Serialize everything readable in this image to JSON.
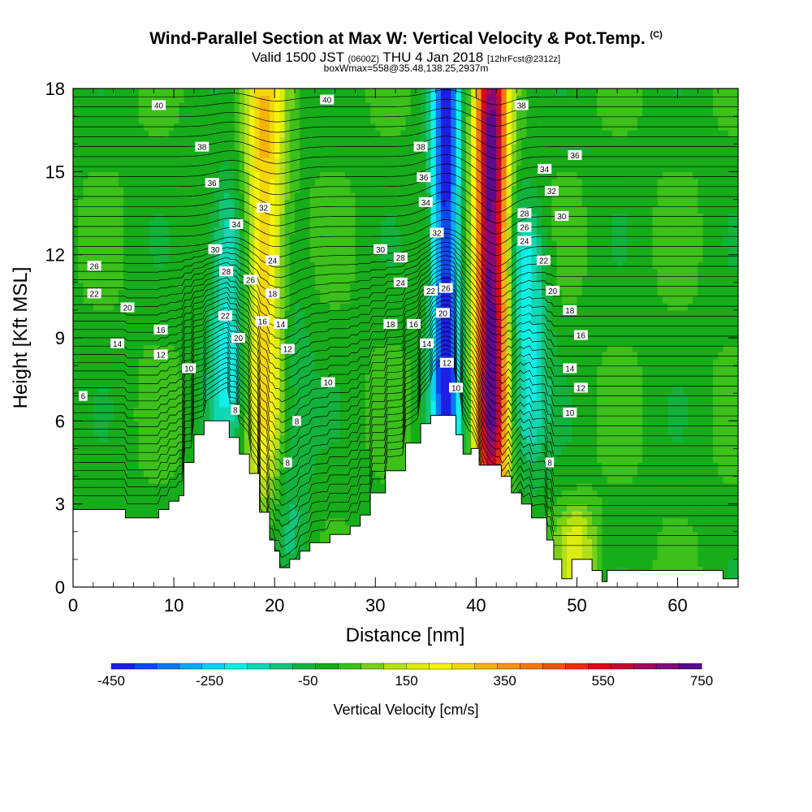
{
  "title": {
    "main": "Wind-Parallel Section at Max W: Vertical Velocity & Pot.Temp.",
    "copyright": "(C)",
    "valid_prefix": "Valid 1500 JST",
    "valid_utc": "(0600Z)",
    "valid_date": "THU 4 Jan 2018",
    "forecast": "[12hrFcst@2312z]",
    "box_info": "boxWmax=558@35.48,138.25,2937m"
  },
  "chart_data": {
    "type": "heatmap",
    "xlabel": "Distance [nm]",
    "ylabel": "Height [Kft MSL]",
    "xlim": [
      0,
      66
    ],
    "ylim": [
      0,
      18
    ],
    "x_ticks": [
      0,
      10,
      20,
      30,
      40,
      50,
      60
    ],
    "y_ticks": [
      0,
      3,
      6,
      9,
      12,
      15,
      18
    ],
    "grid": false,
    "colorbar": {
      "label": "Vertical Velocity [cm/s]",
      "tick_labels": [
        "-450",
        "-250",
        "-50",
        "150",
        "350",
        "550",
        "750"
      ],
      "colors": [
        "#1e1ee6",
        "#0a4af0",
        "#0a78f5",
        "#08aaf5",
        "#0ad2f0",
        "#0ef0e6",
        "#10d8b4",
        "#12c478",
        "#12b23c",
        "#16ac1a",
        "#3cc01a",
        "#78d01a",
        "#b4e018",
        "#dcec10",
        "#f5f50a",
        "#f5d60a",
        "#f5b40a",
        "#f5960a",
        "#f5780a",
        "#f5500a",
        "#ee2a0a",
        "#dc0a14",
        "#c00a32",
        "#a00a5a",
        "#820a78",
        "#5a0a8c"
      ]
    },
    "vertical_velocity_features": [
      {
        "x": 19,
        "z_range": [
          6,
          18
        ],
        "w": 300
      },
      {
        "x": 15.5,
        "z_range": [
          7,
          13
        ],
        "w": -200
      },
      {
        "x": 21.5,
        "z_range": [
          2,
          9
        ],
        "w": -100
      },
      {
        "x": 37,
        "z_range": [
          6,
          18
        ],
        "w": -450
      },
      {
        "x": 41.5,
        "z_range": [
          5,
          18
        ],
        "w": 750
      },
      {
        "x": 45,
        "z_range": [
          6,
          12
        ],
        "w": -200
      },
      {
        "x": 50,
        "z_range": [
          0,
          2
        ],
        "w": 150
      }
    ],
    "terrain": [
      {
        "x": 0,
        "h": 2.8
      },
      {
        "x": 5,
        "h": 2.8
      },
      {
        "x": 5.2,
        "h": 2.5
      },
      {
        "x": 8.3,
        "h": 2.5
      },
      {
        "x": 8.5,
        "h": 2.8
      },
      {
        "x": 9.5,
        "h": 3.1
      },
      {
        "x": 10.5,
        "h": 3.3
      },
      {
        "x": 11,
        "h": 4.5
      },
      {
        "x": 12,
        "h": 5.5
      },
      {
        "x": 13,
        "h": 6.0
      },
      {
        "x": 15,
        "h": 6.0
      },
      {
        "x": 15.5,
        "h": 5.4
      },
      {
        "x": 16.5,
        "h": 4.8
      },
      {
        "x": 17.5,
        "h": 4.1
      },
      {
        "x": 18.5,
        "h": 2.7
      },
      {
        "x": 19.5,
        "h": 1.7
      },
      {
        "x": 20,
        "h": 1.3
      },
      {
        "x": 20.5,
        "h": 0.7
      },
      {
        "x": 21.5,
        "h": 1.0
      },
      {
        "x": 22.5,
        "h": 1.3
      },
      {
        "x": 23.5,
        "h": 1.6
      },
      {
        "x": 25.5,
        "h": 1.9
      },
      {
        "x": 27.5,
        "h": 2.2
      },
      {
        "x": 28.5,
        "h": 2.6
      },
      {
        "x": 29.5,
        "h": 3.4
      },
      {
        "x": 31,
        "h": 4.2
      },
      {
        "x": 33,
        "h": 5.2
      },
      {
        "x": 34.5,
        "h": 5.9
      },
      {
        "x": 35.5,
        "h": 6.2
      },
      {
        "x": 37,
        "h": 6.2
      },
      {
        "x": 38,
        "h": 5.5
      },
      {
        "x": 38.7,
        "h": 4.8
      },
      {
        "x": 39.5,
        "h": 5.0
      },
      {
        "x": 40.3,
        "h": 4.4
      },
      {
        "x": 42,
        "h": 4.4
      },
      {
        "x": 42.5,
        "h": 4.0
      },
      {
        "x": 43.5,
        "h": 3.4
      },
      {
        "x": 44.5,
        "h": 3.0
      },
      {
        "x": 45.5,
        "h": 2.5
      },
      {
        "x": 47,
        "h": 1.7
      },
      {
        "x": 47.7,
        "h": 1.0
      },
      {
        "x": 48.5,
        "h": 0.3
      },
      {
        "x": 49.5,
        "h": 1.0
      },
      {
        "x": 51,
        "h": 1.0
      },
      {
        "x": 51.5,
        "h": 0.6
      },
      {
        "x": 52.5,
        "h": 0.2
      },
      {
        "x": 53,
        "h": 0.6
      },
      {
        "x": 60,
        "h": 0.6
      },
      {
        "x": 64,
        "h": 0.6
      },
      {
        "x": 64.5,
        "h": 0.3
      },
      {
        "x": 66,
        "h": 0.3
      }
    ],
    "potential_temperature_labels": [
      {
        "text": "40",
        "x": 8.5,
        "y": 17.4
      },
      {
        "text": "40",
        "x": 25.2,
        "y": 17.6
      },
      {
        "text": "38",
        "x": 44.5,
        "y": 17.4
      },
      {
        "text": "38",
        "x": 12.8,
        "y": 15.9
      },
      {
        "text": "38",
        "x": 34.5,
        "y": 15.9
      },
      {
        "text": "36",
        "x": 49.8,
        "y": 15.6
      },
      {
        "text": "36",
        "x": 13.8,
        "y": 14.6
      },
      {
        "text": "36",
        "x": 34.8,
        "y": 14.8
      },
      {
        "text": "34",
        "x": 46.8,
        "y": 15.1
      },
      {
        "text": "34",
        "x": 16.2,
        "y": 13.1
      },
      {
        "text": "32",
        "x": 18.9,
        "y": 13.7
      },
      {
        "text": "34",
        "x": 35,
        "y": 13.9
      },
      {
        "text": "32",
        "x": 47.5,
        "y": 14.3
      },
      {
        "text": "28",
        "x": 44.8,
        "y": 13.5
      },
      {
        "text": "30",
        "x": 48.5,
        "y": 13.4
      },
      {
        "text": "32",
        "x": 36.1,
        "y": 12.8
      },
      {
        "text": "26",
        "x": 44.8,
        "y": 13.0
      },
      {
        "text": "24",
        "x": 44.8,
        "y": 12.5
      },
      {
        "text": "30",
        "x": 14.1,
        "y": 12.2
      },
      {
        "text": "30",
        "x": 30.5,
        "y": 12.2
      },
      {
        "text": "28",
        "x": 32.5,
        "y": 11.9
      },
      {
        "text": "24",
        "x": 19.8,
        "y": 11.8
      },
      {
        "text": "22",
        "x": 46.7,
        "y": 11.8
      },
      {
        "text": "26",
        "x": 2.1,
        "y": 11.6
      },
      {
        "text": "28",
        "x": 15.2,
        "y": 11.4
      },
      {
        "text": "26",
        "x": 17.6,
        "y": 11.1
      },
      {
        "text": "24",
        "x": 32.5,
        "y": 11.0
      },
      {
        "text": "26",
        "x": 37,
        "y": 10.8
      },
      {
        "text": "20",
        "x": 47.6,
        "y": 10.7
      },
      {
        "text": "22",
        "x": 35.5,
        "y": 10.7
      },
      {
        "text": "22",
        "x": 2.1,
        "y": 10.6
      },
      {
        "text": "18",
        "x": 19.8,
        "y": 10.6
      },
      {
        "text": "20",
        "x": 5.4,
        "y": 10.1
      },
      {
        "text": "18",
        "x": 49.3,
        "y": 10.0
      },
      {
        "text": "22",
        "x": 15.1,
        "y": 9.8
      },
      {
        "text": "20",
        "x": 36.7,
        "y": 9.9
      },
      {
        "text": "16",
        "x": 18.8,
        "y": 9.6
      },
      {
        "text": "14",
        "x": 20.6,
        "y": 9.5
      },
      {
        "text": "18",
        "x": 31.5,
        "y": 9.5
      },
      {
        "text": "16",
        "x": 33.8,
        "y": 9.5
      },
      {
        "text": "16",
        "x": 8.7,
        "y": 9.3
      },
      {
        "text": "16",
        "x": 50.4,
        "y": 9.1
      },
      {
        "text": "20",
        "x": 16.4,
        "y": 9.0
      },
      {
        "text": "14",
        "x": 35.1,
        "y": 8.8
      },
      {
        "text": "14",
        "x": 4.4,
        "y": 8.8
      },
      {
        "text": "12",
        "x": 21.3,
        "y": 8.6
      },
      {
        "text": "12",
        "x": 8.7,
        "y": 8.4
      },
      {
        "text": "12",
        "x": 37.1,
        "y": 8.1
      },
      {
        "text": "10",
        "x": 11.5,
        "y": 7.9
      },
      {
        "text": "14",
        "x": 49.3,
        "y": 7.9
      },
      {
        "text": "10",
        "x": 25.3,
        "y": 7.4
      },
      {
        "text": "10",
        "x": 38,
        "y": 7.2
      },
      {
        "text": "12",
        "x": 50.4,
        "y": 7.2
      },
      {
        "text": "6",
        "x": 1.0,
        "y": 6.9
      },
      {
        "text": "10",
        "x": 49.3,
        "y": 6.3
      },
      {
        "text": "8",
        "x": 16.1,
        "y": 6.4
      },
      {
        "text": "8",
        "x": 22.2,
        "y": 6.0
      },
      {
        "text": "8",
        "x": 47.3,
        "y": 4.5
      },
      {
        "text": "8",
        "x": 21.3,
        "y": 4.5
      }
    ]
  }
}
